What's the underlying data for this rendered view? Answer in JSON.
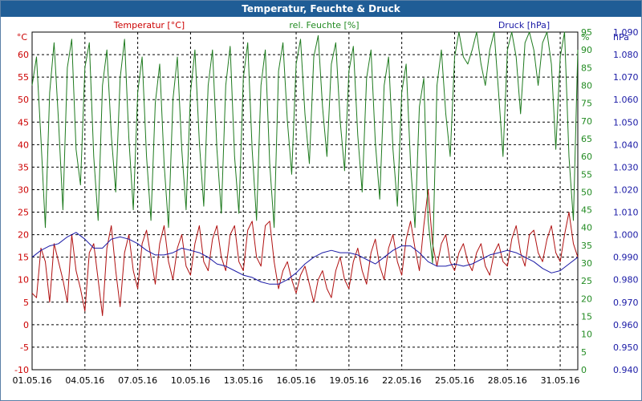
{
  "chart_data": {
    "type": "line",
    "title": "Temperatur, Feuchte & Druck",
    "x_tick_labels": [
      "01.05.16",
      "04.05.16",
      "07.05.16",
      "10.05.16",
      "13.05.16",
      "16.05.16",
      "19.05.16",
      "22.05.16",
      "25.05.16",
      "28.05.16",
      "31.05.16"
    ],
    "x_range_days": [
      0,
      31
    ],
    "axes": {
      "left": {
        "unit": "°C",
        "min": -10,
        "max": 65,
        "step": 5,
        "color": "#cc0000",
        "decimals": 0
      },
      "right1": {
        "unit": "%",
        "min": 0,
        "max": 95,
        "step": 5,
        "color": "#228b22",
        "decimals": 0
      },
      "right2": {
        "unit": "hPa",
        "min": 940,
        "max": 1090,
        "step": 10,
        "color": "#1a1aa6",
        "decimals": 3
      }
    },
    "series": [
      {
        "name": "Temperatur [°C]",
        "axis": "left",
        "color": "#b01010",
        "points": [
          [
            0,
            7
          ],
          [
            0.25,
            6
          ],
          [
            0.5,
            17
          ],
          [
            0.75,
            14
          ],
          [
            1,
            5
          ],
          [
            1.25,
            18
          ],
          [
            1.5,
            14
          ],
          [
            1.75,
            10
          ],
          [
            2,
            5
          ],
          [
            2.25,
            20
          ],
          [
            2.5,
            12
          ],
          [
            2.75,
            8
          ],
          [
            3,
            3
          ],
          [
            3.25,
            16
          ],
          [
            3.5,
            18
          ],
          [
            3.75,
            10
          ],
          [
            4,
            2
          ],
          [
            4.25,
            17
          ],
          [
            4.5,
            22
          ],
          [
            4.75,
            12
          ],
          [
            5,
            4
          ],
          [
            5.25,
            16
          ],
          [
            5.5,
            20
          ],
          [
            5.75,
            12
          ],
          [
            6,
            8
          ],
          [
            6.25,
            18
          ],
          [
            6.5,
            21
          ],
          [
            6.75,
            15
          ],
          [
            7,
            9
          ],
          [
            7.25,
            18
          ],
          [
            7.5,
            22
          ],
          [
            7.75,
            14
          ],
          [
            8,
            10
          ],
          [
            8.25,
            17
          ],
          [
            8.5,
            20
          ],
          [
            8.75,
            13
          ],
          [
            9,
            11
          ],
          [
            9.25,
            18
          ],
          [
            9.5,
            22
          ],
          [
            9.75,
            14
          ],
          [
            10,
            12
          ],
          [
            10.25,
            19
          ],
          [
            10.5,
            22
          ],
          [
            10.75,
            15
          ],
          [
            11,
            12
          ],
          [
            11.25,
            20
          ],
          [
            11.5,
            22
          ],
          [
            11.75,
            14
          ],
          [
            12,
            12
          ],
          [
            12.25,
            21
          ],
          [
            12.5,
            23
          ],
          [
            12.75,
            15
          ],
          [
            13,
            13
          ],
          [
            13.25,
            22
          ],
          [
            13.5,
            23
          ],
          [
            13.75,
            14
          ],
          [
            14,
            8
          ],
          [
            14.25,
            12
          ],
          [
            14.5,
            14
          ],
          [
            14.75,
            10
          ],
          [
            15,
            7
          ],
          [
            15.25,
            11
          ],
          [
            15.5,
            13
          ],
          [
            15.75,
            9
          ],
          [
            16,
            5
          ],
          [
            16.25,
            10
          ],
          [
            16.5,
            12
          ],
          [
            16.75,
            8
          ],
          [
            17,
            6
          ],
          [
            17.25,
            12
          ],
          [
            17.5,
            15
          ],
          [
            17.75,
            10
          ],
          [
            18,
            8
          ],
          [
            18.25,
            14
          ],
          [
            18.5,
            17
          ],
          [
            18.75,
            12
          ],
          [
            19,
            9
          ],
          [
            19.25,
            16
          ],
          [
            19.5,
            19
          ],
          [
            19.75,
            13
          ],
          [
            20,
            10
          ],
          [
            20.25,
            17
          ],
          [
            20.5,
            20
          ],
          [
            20.75,
            14
          ],
          [
            21,
            11
          ],
          [
            21.25,
            19
          ],
          [
            21.5,
            23
          ],
          [
            21.75,
            17
          ],
          [
            22,
            12
          ],
          [
            22.25,
            22
          ],
          [
            22.5,
            30
          ],
          [
            22.75,
            18
          ],
          [
            23,
            13
          ],
          [
            23.25,
            18
          ],
          [
            23.5,
            20
          ],
          [
            23.75,
            14
          ],
          [
            24,
            12
          ],
          [
            24.25,
            16
          ],
          [
            24.5,
            18
          ],
          [
            24.75,
            14
          ],
          [
            25,
            12
          ],
          [
            25.25,
            16
          ],
          [
            25.5,
            18
          ],
          [
            25.75,
            13
          ],
          [
            26,
            11
          ],
          [
            26.25,
            16
          ],
          [
            26.5,
            18
          ],
          [
            26.75,
            14
          ],
          [
            27,
            13
          ],
          [
            27.25,
            19
          ],
          [
            27.5,
            22
          ],
          [
            27.75,
            16
          ],
          [
            28,
            13
          ],
          [
            28.25,
            20
          ],
          [
            28.5,
            21
          ],
          [
            28.75,
            16
          ],
          [
            29,
            14
          ],
          [
            29.25,
            19
          ],
          [
            29.5,
            22
          ],
          [
            29.75,
            16
          ],
          [
            30,
            14
          ],
          [
            30.25,
            20
          ],
          [
            30.5,
            25
          ],
          [
            30.75,
            18
          ],
          [
            31,
            15
          ]
        ]
      },
      {
        "name": "rel. Feuchte [%]",
        "axis": "right1",
        "color": "#1e7a1e",
        "points": [
          [
            0,
            80
          ],
          [
            0.25,
            88
          ],
          [
            0.5,
            65
          ],
          [
            0.75,
            40
          ],
          [
            1,
            78
          ],
          [
            1.25,
            92
          ],
          [
            1.5,
            70
          ],
          [
            1.75,
            45
          ],
          [
            2,
            85
          ],
          [
            2.25,
            93
          ],
          [
            2.5,
            62
          ],
          [
            2.75,
            52
          ],
          [
            3,
            85
          ],
          [
            3.25,
            92
          ],
          [
            3.5,
            60
          ],
          [
            3.75,
            42
          ],
          [
            4,
            80
          ],
          [
            4.25,
            90
          ],
          [
            4.5,
            66
          ],
          [
            4.75,
            50
          ],
          [
            5,
            82
          ],
          [
            5.25,
            93
          ],
          [
            5.5,
            65
          ],
          [
            5.75,
            45
          ],
          [
            6,
            78
          ],
          [
            6.25,
            88
          ],
          [
            6.5,
            60
          ],
          [
            6.75,
            42
          ],
          [
            7,
            75
          ],
          [
            7.25,
            86
          ],
          [
            7.5,
            58
          ],
          [
            7.75,
            40
          ],
          [
            8,
            76
          ],
          [
            8.25,
            88
          ],
          [
            8.5,
            62
          ],
          [
            8.75,
            45
          ],
          [
            9,
            78
          ],
          [
            9.25,
            90
          ],
          [
            9.5,
            64
          ],
          [
            9.75,
            46
          ],
          [
            10,
            80
          ],
          [
            10.25,
            90
          ],
          [
            10.5,
            62
          ],
          [
            10.75,
            44
          ],
          [
            11,
            80
          ],
          [
            11.25,
            91
          ],
          [
            11.5,
            60
          ],
          [
            11.75,
            44
          ],
          [
            12,
            82
          ],
          [
            12.25,
            92
          ],
          [
            12.5,
            62
          ],
          [
            12.75,
            42
          ],
          [
            13,
            80
          ],
          [
            13.25,
            90
          ],
          [
            13.5,
            58
          ],
          [
            13.75,
            40
          ],
          [
            14,
            84
          ],
          [
            14.25,
            92
          ],
          [
            14.5,
            70
          ],
          [
            14.75,
            55
          ],
          [
            15,
            86
          ],
          [
            15.25,
            93
          ],
          [
            15.5,
            72
          ],
          [
            15.75,
            58
          ],
          [
            16,
            88
          ],
          [
            16.25,
            94
          ],
          [
            16.5,
            74
          ],
          [
            16.75,
            60
          ],
          [
            17,
            86
          ],
          [
            17.25,
            92
          ],
          [
            17.5,
            70
          ],
          [
            17.75,
            56
          ],
          [
            18,
            84
          ],
          [
            18.25,
            91
          ],
          [
            18.5,
            66
          ],
          [
            18.75,
            50
          ],
          [
            19,
            82
          ],
          [
            19.25,
            90
          ],
          [
            19.5,
            64
          ],
          [
            19.75,
            48
          ],
          [
            20,
            80
          ],
          [
            20.25,
            88
          ],
          [
            20.5,
            62
          ],
          [
            20.75,
            46
          ],
          [
            21,
            78
          ],
          [
            21.25,
            86
          ],
          [
            21.5,
            58
          ],
          [
            21.75,
            40
          ],
          [
            22,
            74
          ],
          [
            22.25,
            82
          ],
          [
            22.5,
            42
          ],
          [
            22.75,
            30
          ],
          [
            23,
            80
          ],
          [
            23.25,
            90
          ],
          [
            23.5,
            72
          ],
          [
            23.75,
            60
          ],
          [
            24,
            88
          ],
          [
            24.25,
            96
          ],
          [
            24.5,
            88
          ],
          [
            24.75,
            86
          ],
          [
            25,
            90
          ],
          [
            25.25,
            95
          ],
          [
            25.5,
            86
          ],
          [
            25.75,
            80
          ],
          [
            26,
            90
          ],
          [
            26.25,
            95
          ],
          [
            26.5,
            78
          ],
          [
            26.75,
            60
          ],
          [
            27,
            90
          ],
          [
            27.25,
            96
          ],
          [
            27.5,
            88
          ],
          [
            27.75,
            72
          ],
          [
            28,
            92
          ],
          [
            28.25,
            97
          ],
          [
            28.5,
            90
          ],
          [
            28.75,
            80
          ],
          [
            29,
            92
          ],
          [
            29.25,
            97
          ],
          [
            29.5,
            86
          ],
          [
            29.75,
            62
          ],
          [
            30,
            88
          ],
          [
            30.25,
            95
          ],
          [
            30.5,
            60
          ],
          [
            30.75,
            42
          ],
          [
            31,
            90
          ]
        ]
      },
      {
        "name": "Druck [hPa]",
        "axis": "right2",
        "color": "#1a1aa6",
        "points": [
          [
            0,
            990
          ],
          [
            0.5,
            993
          ],
          [
            1,
            995
          ],
          [
            1.5,
            996
          ],
          [
            2,
            999
          ],
          [
            2.5,
            1001
          ],
          [
            3,
            998
          ],
          [
            3.5,
            994
          ],
          [
            4,
            994
          ],
          [
            4.5,
            998
          ],
          [
            5,
            999
          ],
          [
            5.5,
            998
          ],
          [
            6,
            996
          ],
          [
            6.5,
            993
          ],
          [
            7,
            991
          ],
          [
            7.5,
            991
          ],
          [
            8,
            992
          ],
          [
            8.5,
            994
          ],
          [
            9,
            993
          ],
          [
            9.5,
            992
          ],
          [
            10,
            990
          ],
          [
            10.5,
            987
          ],
          [
            11,
            986
          ],
          [
            11.5,
            984
          ],
          [
            12,
            982
          ],
          [
            12.5,
            981
          ],
          [
            13,
            979
          ],
          [
            13.5,
            978
          ],
          [
            14,
            978
          ],
          [
            14.5,
            980
          ],
          [
            15,
            983
          ],
          [
            15.5,
            987
          ],
          [
            16,
            990
          ],
          [
            16.5,
            992
          ],
          [
            17,
            993
          ],
          [
            17.5,
            992
          ],
          [
            18,
            992
          ],
          [
            18.5,
            991
          ],
          [
            19,
            989
          ],
          [
            19.5,
            987
          ],
          [
            20,
            990
          ],
          [
            20.5,
            993
          ],
          [
            21,
            995
          ],
          [
            21.5,
            995
          ],
          [
            22,
            992
          ],
          [
            22.5,
            988
          ],
          [
            23,
            986
          ],
          [
            23.5,
            986
          ],
          [
            24,
            987
          ],
          [
            24.5,
            986
          ],
          [
            25,
            987
          ],
          [
            25.5,
            989
          ],
          [
            26,
            991
          ],
          [
            26.5,
            992
          ],
          [
            27,
            993
          ],
          [
            27.5,
            992
          ],
          [
            28,
            990
          ],
          [
            28.5,
            988
          ],
          [
            29,
            985
          ],
          [
            29.5,
            983
          ],
          [
            30,
            984
          ],
          [
            30.5,
            987
          ],
          [
            31,
            990
          ]
        ]
      }
    ]
  }
}
